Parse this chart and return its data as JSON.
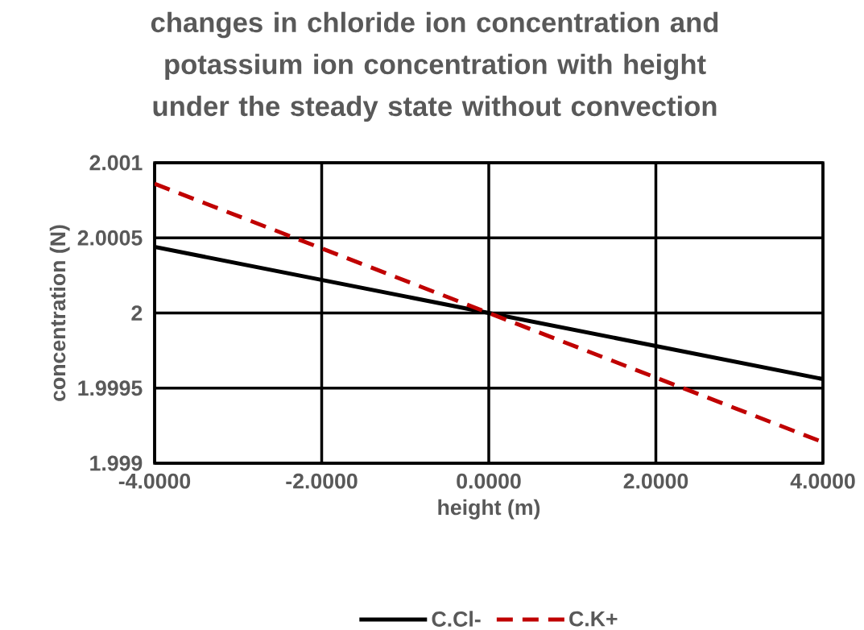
{
  "chart_data": {
    "type": "line",
    "title": "changes in chloride ion concentration and potassium ion concentration with height under the steady state without convection",
    "xlabel": "height (m)",
    "ylabel": "concentration (N)",
    "x": [
      -4,
      0,
      4
    ],
    "series": [
      {
        "name": "C.Cl-",
        "color": "#000000",
        "line_style": "solid",
        "values": [
          2.00044,
          2.0,
          1.99956
        ]
      },
      {
        "name": "C.K+",
        "color": "#c00000",
        "line_style": "dashed",
        "values": [
          2.00086,
          2.0,
          1.99914
        ]
      }
    ],
    "xlim": [
      -4,
      4
    ],
    "xticks": [
      {
        "value": -4,
        "label": "-4.0000"
      },
      {
        "value": -2,
        "label": "-2.0000"
      },
      {
        "value": 0,
        "label": "0.0000"
      },
      {
        "value": 2,
        "label": "2.0000"
      },
      {
        "value": 4,
        "label": "4.0000"
      }
    ],
    "ylim": [
      1.999,
      2.001
    ],
    "yticks": [
      1.999,
      1.9995,
      2,
      2.0005,
      2.001
    ],
    "grid": true,
    "legend": "bottom",
    "marker": "none"
  }
}
